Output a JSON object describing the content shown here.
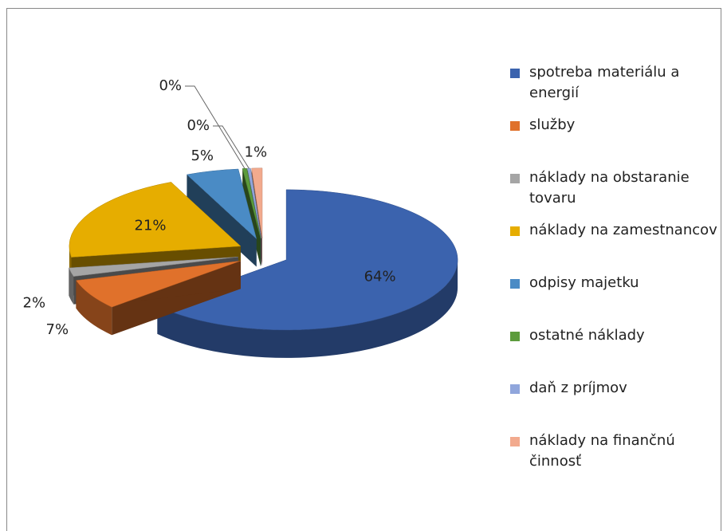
{
  "chart_data": {
    "type": "pie3d",
    "categories": [
      "spotreba materiálu a energií",
      "služby",
      "náklady na obstaranie tovaru",
      "náklady na zamestnancov",
      "odpisy majetku",
      "ostatné náklady",
      "daň z príjmov",
      "náklady na finančnú činnosť"
    ],
    "values": [
      64,
      7,
      2,
      21,
      5,
      0.4,
      0.3,
      1
    ],
    "value_labels": [
      "64%",
      "7%",
      "2%",
      "21%",
      "5%",
      "0%",
      "0%",
      "1%"
    ],
    "colors": [
      "#3b63ae",
      "#e0712b",
      "#a5a5a5",
      "#e6ad00",
      "#4a8bc5",
      "#5c9b3c",
      "#90a6dc",
      "#f2aa8e"
    ],
    "legend": "right"
  }
}
